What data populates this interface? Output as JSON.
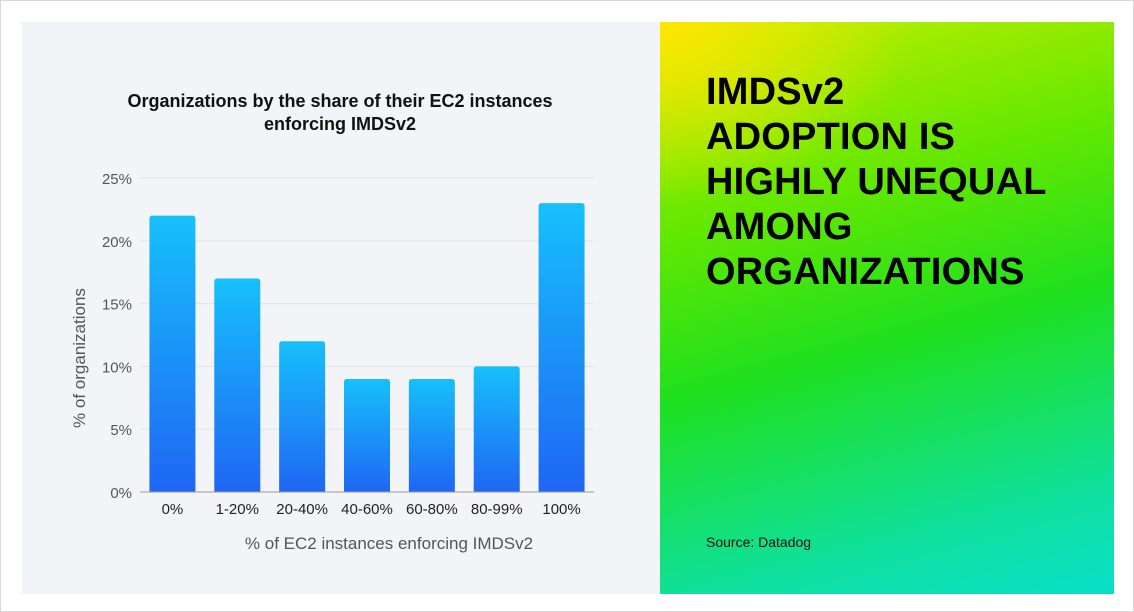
{
  "headline": {
    "lines": [
      "IMDSv2",
      "ADOPTION IS",
      "HIGHLY UNEQUAL",
      "AMONG",
      "ORGANIZATIONS"
    ]
  },
  "source": "Source: Datadog",
  "colors": {
    "bar_top": "#17c0fb",
    "bar_bottom": "#1f66f4",
    "panel_bg": "#f3f4f8",
    "text_dark": "#111111",
    "axis_text": "#555555"
  },
  "chart_data": {
    "type": "bar",
    "title_lines": [
      "Organizations by the share of their EC2 instances",
      "enforcing IMDSv2"
    ],
    "xlabel": "% of EC2 instances enforcing IMDSv2",
    "ylabel": "% of organizations",
    "categories": [
      "0%",
      "1-20%",
      "20-40%",
      "40-60%",
      "60-80%",
      "80-99%",
      "100%"
    ],
    "values": [
      22,
      17,
      12,
      9,
      9,
      10,
      23
    ],
    "ylim": [
      0,
      25
    ],
    "yticks": [
      0,
      5,
      10,
      15,
      20,
      25
    ],
    "ytick_labels": [
      "0%",
      "5%",
      "10%",
      "15%",
      "20%",
      "25%"
    ],
    "grid": true,
    "legend": "none"
  }
}
